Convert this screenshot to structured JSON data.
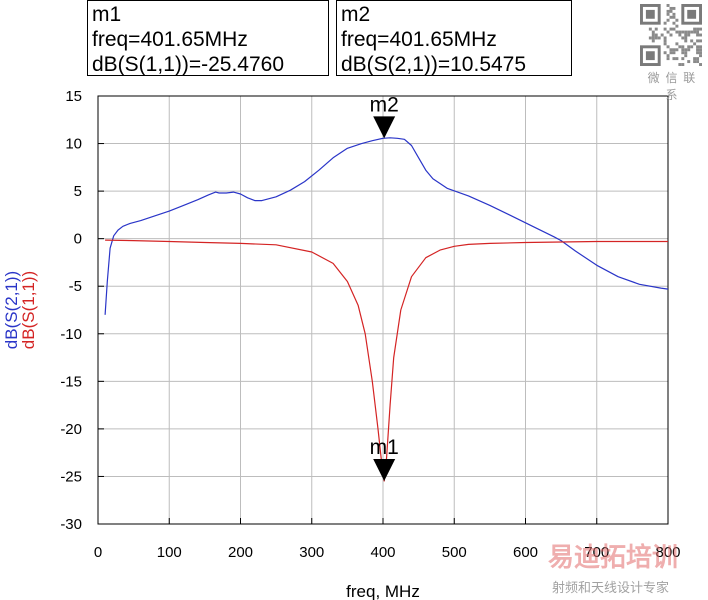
{
  "markers": [
    {
      "name": "m1",
      "freq_line": "freq=401.65MHz",
      "value_line": "dB(S(1,1))=-25.4760",
      "freq": 401.65,
      "value": -25.476,
      "series": "s11"
    },
    {
      "name": "m2",
      "freq_line": "freq=401.65MHz",
      "value_line": "dB(S(2,1))=10.5475",
      "freq": 401.65,
      "value": 10.5475,
      "series": "s21"
    }
  ],
  "watermark": {
    "qr_caption": "微 信 联 系",
    "logo": "易迪拓培训",
    "logo_sub": "射频和天线设计专家"
  },
  "chart_data": {
    "type": "line",
    "xlabel": "freq, MHz",
    "ylabels": [
      "dB(S(2,1))",
      "dB(S(1,1))"
    ],
    "xlim": [
      0,
      800
    ],
    "ylim": [
      -30,
      15
    ],
    "x_ticks": [
      0,
      100,
      200,
      300,
      400,
      500,
      600,
      700,
      800
    ],
    "y_ticks": [
      -30,
      -25,
      -20,
      -15,
      -10,
      -5,
      0,
      5,
      10,
      15
    ],
    "grid": true,
    "colors": {
      "s21": "#2a35c8",
      "s11": "#d42424",
      "grid": "#bdbdbd"
    },
    "series": [
      {
        "key": "s21",
        "name": "dB(S(2,1))",
        "x": [
          10,
          13,
          17,
          22,
          28,
          35,
          45,
          60,
          80,
          100,
          120,
          140,
          155,
          165,
          170,
          180,
          190,
          200,
          210,
          220,
          230,
          250,
          270,
          290,
          310,
          330,
          350,
          370,
          385,
          400,
          410,
          420,
          430,
          440,
          450,
          460,
          470,
          490,
          520,
          550,
          580,
          610,
          640,
          650,
          670,
          700,
          730,
          760,
          790,
          800
        ],
        "y": [
          -8.0,
          -4.5,
          -1.0,
          0.3,
          0.9,
          1.3,
          1.6,
          1.9,
          2.4,
          2.9,
          3.5,
          4.1,
          4.6,
          4.9,
          4.8,
          4.8,
          4.9,
          4.7,
          4.3,
          4.0,
          4.0,
          4.4,
          5.1,
          6.0,
          7.2,
          8.5,
          9.5,
          10.0,
          10.3,
          10.55,
          10.6,
          10.55,
          10.45,
          9.8,
          8.5,
          7.2,
          6.3,
          5.3,
          4.5,
          3.5,
          2.4,
          1.3,
          0.2,
          -0.2,
          -1.3,
          -2.8,
          -4.0,
          -4.8,
          -5.2,
          -5.3
        ]
      },
      {
        "key": "s11",
        "name": "dB(S(1,1))",
        "x": [
          10,
          50,
          100,
          150,
          200,
          250,
          300,
          330,
          350,
          365,
          375,
          385,
          393,
          398,
          401.65,
          405,
          410,
          415,
          425,
          440,
          460,
          480,
          500,
          520,
          550,
          600,
          650,
          700,
          750,
          800
        ],
        "y": [
          -0.15,
          -0.2,
          -0.3,
          -0.4,
          -0.5,
          -0.65,
          -1.4,
          -2.6,
          -4.5,
          -7.0,
          -10.0,
          -15.0,
          -20.0,
          -23.5,
          -25.476,
          -23.0,
          -17.5,
          -12.5,
          -7.5,
          -4.0,
          -2.0,
          -1.2,
          -0.8,
          -0.6,
          -0.5,
          -0.4,
          -0.35,
          -0.3,
          -0.3,
          -0.3
        ]
      }
    ],
    "markers": [
      {
        "name": "m1",
        "x": 401.65,
        "y": -25.476,
        "series": "s11"
      },
      {
        "name": "m2",
        "x": 401.65,
        "y": 10.5475,
        "series": "s21"
      }
    ]
  }
}
